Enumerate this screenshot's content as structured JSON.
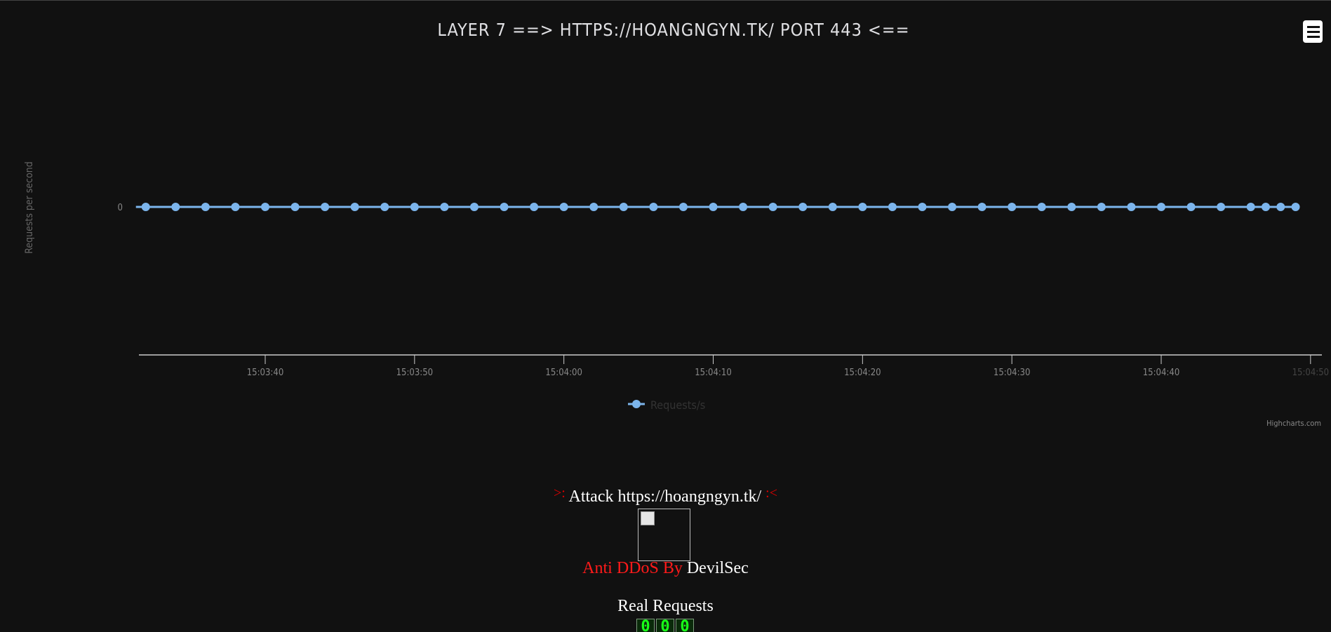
{
  "chart_data": {
    "type": "line",
    "title": "LAYER 7 ==> HTTPS://HOANGNGYN.TK/ PORT 443 <==",
    "ylabel": "Requests per second",
    "xlabel": "",
    "y_ticks": [
      "0"
    ],
    "x_ticks": [
      "15:03:40",
      "15:03:50",
      "15:04:00",
      "15:04:10",
      "15:04:20",
      "15:04:30",
      "15:04:40",
      "15:04:50"
    ],
    "series": [
      {
        "name": "Requests/s",
        "color": "#7cb5ec",
        "x": [
          "15:03:32",
          "15:03:34",
          "15:03:36",
          "15:03:38",
          "15:03:40",
          "15:03:42",
          "15:03:44",
          "15:03:46",
          "15:03:48",
          "15:03:50",
          "15:03:52",
          "15:03:54",
          "15:03:56",
          "15:03:58",
          "15:04:00",
          "15:04:02",
          "15:04:04",
          "15:04:06",
          "15:04:08",
          "15:04:10",
          "15:04:12",
          "15:04:14",
          "15:04:16",
          "15:04:18",
          "15:04:20",
          "15:04:22",
          "15:04:24",
          "15:04:26",
          "15:04:28",
          "15:04:30",
          "15:04:32",
          "15:04:34",
          "15:04:36",
          "15:04:38",
          "15:04:40",
          "15:04:42",
          "15:04:44",
          "15:04:46",
          "15:04:47",
          "15:04:48",
          "15:04:49"
        ],
        "values": [
          0,
          0,
          0,
          0,
          0,
          0,
          0,
          0,
          0,
          0,
          0,
          0,
          0,
          0,
          0,
          0,
          0,
          0,
          0,
          0,
          0,
          0,
          0,
          0,
          0,
          0,
          0,
          0,
          0,
          0,
          0,
          0,
          0,
          0,
          0,
          0,
          0,
          0,
          0,
          0,
          0
        ]
      }
    ],
    "legend": "bottom-center",
    "credits": "Highcharts.com",
    "grid": false
  },
  "captions": {
    "attack_left_arrow": ">:",
    "attack_text": "Attack https://hoangngyn.tk/",
    "attack_right_arrow": ":<",
    "anti_ddos_red": "Anti DDoS By",
    "anti_ddos_white": "DevilSec",
    "real_requests": "Real Requests"
  },
  "counter": {
    "digits": [
      "0",
      "0",
      "0"
    ],
    "color": "#19ff19"
  },
  "colors": {
    "background": "#111111",
    "series": "#7cb5ec",
    "accent_red": "#ff1a1a"
  },
  "icons": {
    "menu": "hamburger-menu-icon",
    "broken_image": "broken-image-icon"
  }
}
